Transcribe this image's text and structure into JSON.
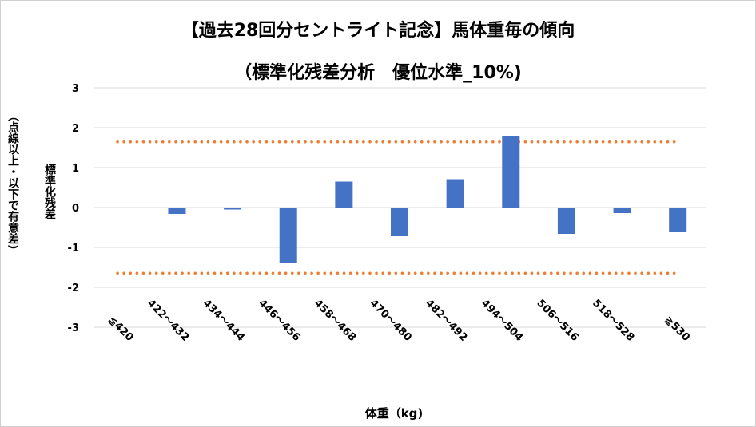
{
  "chart_data": {
    "type": "bar",
    "title_line1": "【過去28回分セントライト記念】馬体重毎の傾向",
    "title_line2": "（標準化残差分析　優位水準_10%)",
    "xlabel": "体重（kg)",
    "ylabel_main": "標準化残差",
    "ylabel_sub": "（点線以上・以下で有意差)",
    "categories": [
      "≦420",
      "422～432",
      "434～444",
      "446～456",
      "458～468",
      "470～480",
      "482～492",
      "494～504",
      "506～516",
      "518～528",
      "≧530"
    ],
    "values": [
      0,
      -0.16,
      -0.05,
      -1.4,
      0.65,
      -0.72,
      0.71,
      1.8,
      -0.66,
      -0.14,
      -0.62
    ],
    "ylim": [
      -3,
      3
    ],
    "yticks": [
      "-3",
      "-2",
      "-1",
      "0",
      "1",
      "2",
      "3"
    ],
    "threshold_upper": 1.645,
    "threshold_lower": -1.645,
    "grid": true,
    "colors": {
      "bar": "#4472C4",
      "threshold": "#ED7D31",
      "grid": "#D9D9D9"
    }
  }
}
